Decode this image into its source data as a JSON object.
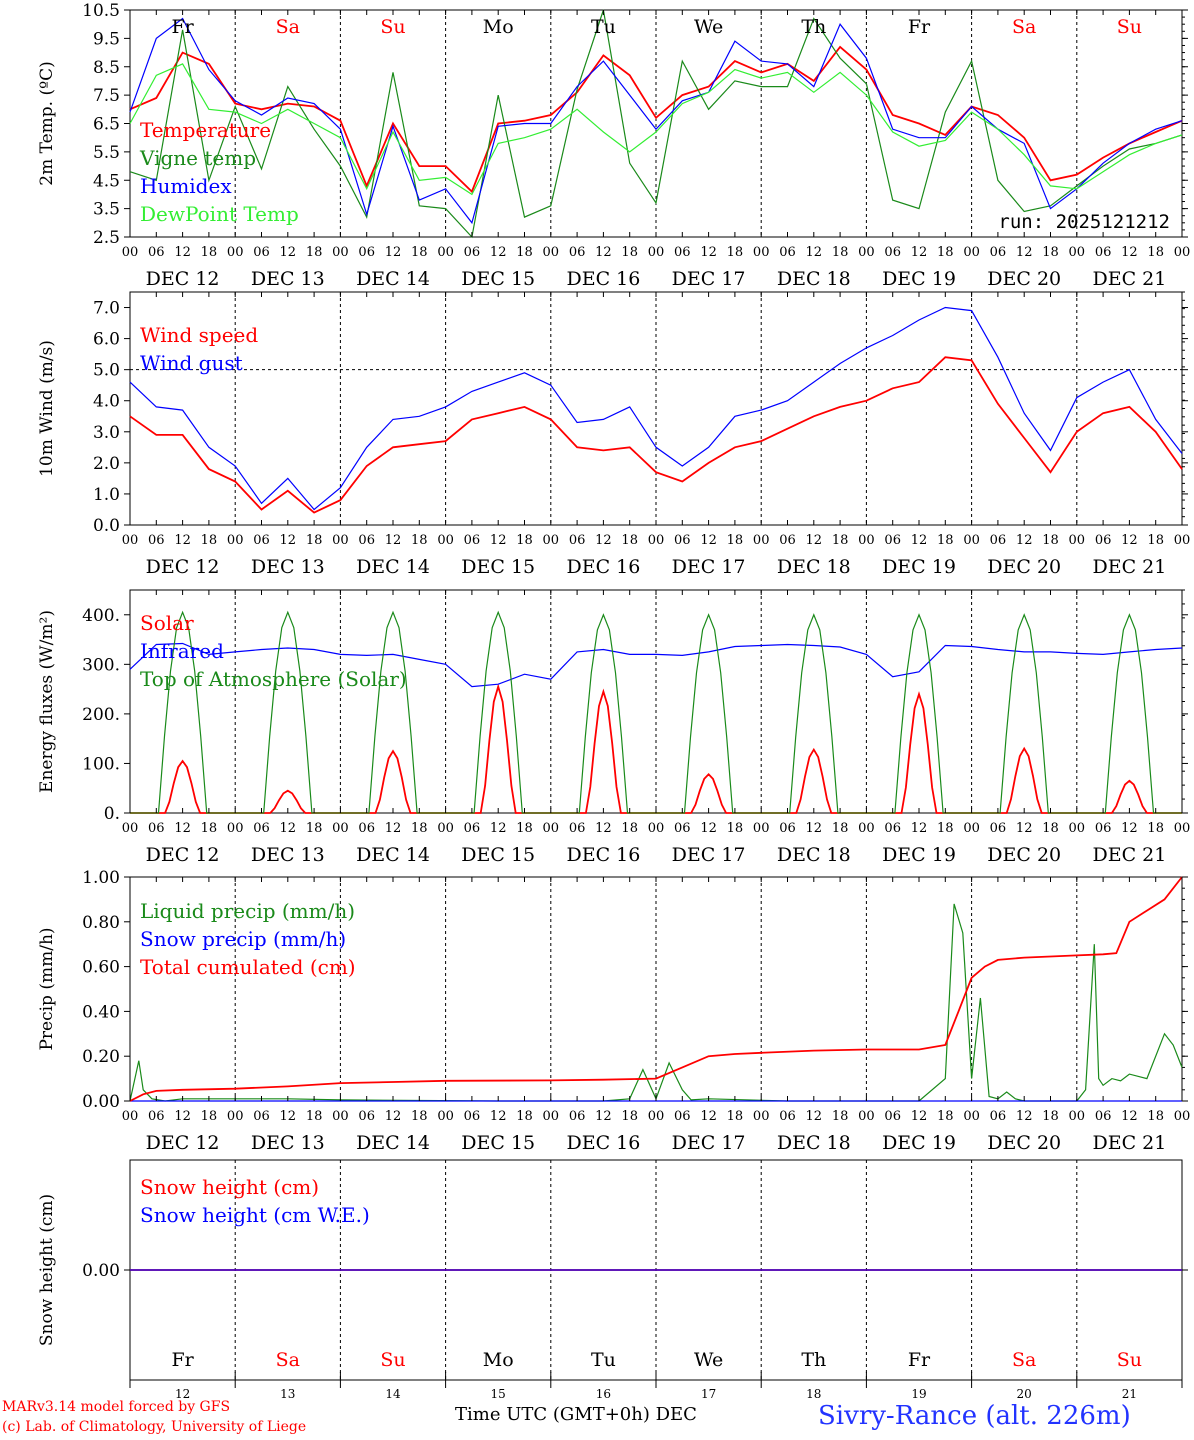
{
  "meter": {
    "run_label": "run: 2025121212",
    "location_label": "Sivry-Rance (alt. 226m)",
    "credit_model": "MARv3.14 model forced by GFS",
    "credit_lab": "(c) Lab. of Climatology, University of Liege",
    "xaxis_title": "Time UTC (GMT+0h)",
    "month_label": "DEC"
  },
  "colors": {
    "red": "#ff0000",
    "green": "#1a8a1a",
    "blue": "#0000ff",
    "lightgreen": "#33ee33",
    "black": "#000000",
    "grid": "#000000"
  },
  "chart_data": [
    {
      "type": "line",
      "ylabel": "2m Temp. (ºC)",
      "ylim": [
        2.5,
        10.5
      ],
      "yticks": [
        "2.5",
        "3.5",
        "4.5",
        "5.5",
        "6.5",
        "7.5",
        "8.5",
        "9.5",
        "10.5"
      ],
      "x_hours": [
        0,
        6,
        12,
        18,
        24,
        30,
        36,
        42,
        48,
        54,
        60,
        66,
        72,
        78,
        84,
        90,
        96,
        102,
        108,
        114,
        120,
        126,
        132,
        138,
        144,
        150,
        156,
        162,
        168,
        174,
        180,
        186,
        192,
        198,
        204,
        210,
        216,
        222,
        228,
        234,
        240
      ],
      "series": [
        {
          "name": "Temperature",
          "color": "red",
          "values": [
            7.0,
            7.4,
            9.0,
            8.6,
            7.2,
            7.0,
            7.2,
            7.1,
            6.6,
            4.3,
            6.5,
            5.0,
            5.0,
            4.1,
            6.5,
            6.6,
            6.8,
            7.6,
            8.9,
            8.2,
            6.7,
            7.5,
            7.8,
            8.7,
            8.3,
            8.6,
            8.0,
            9.2,
            8.4,
            6.8,
            6.5,
            6.1,
            7.1,
            6.8,
            6.0,
            4.5,
            4.7,
            5.3,
            5.8,
            6.2,
            6.6
          ]
        },
        {
          "name": "Vigne temp",
          "color": "green",
          "values": [
            4.8,
            4.5,
            9.8,
            4.5,
            7.1,
            4.9,
            7.8,
            6.3,
            5.0,
            3.2,
            8.3,
            3.6,
            3.5,
            2.4,
            7.5,
            3.2,
            3.6,
            7.7,
            10.5,
            5.1,
            3.7,
            8.7,
            7.0,
            8.0,
            7.8,
            7.8,
            10.2,
            8.8,
            7.9,
            3.8,
            3.5,
            6.9,
            8.7,
            4.5,
            3.4,
            3.6,
            4.3,
            5.0,
            5.6,
            5.8,
            6.1
          ]
        },
        {
          "name": "Humidex",
          "color": "blue",
          "values": [
            6.9,
            9.5,
            10.2,
            8.4,
            7.3,
            6.8,
            7.4,
            7.2,
            6.3,
            3.3,
            6.4,
            3.8,
            4.2,
            3.0,
            6.4,
            6.5,
            6.5,
            7.8,
            8.7,
            7.5,
            6.3,
            7.3,
            7.6,
            9.4,
            8.7,
            8.6,
            7.8,
            10.0,
            8.8,
            6.3,
            6.0,
            6.0,
            7.1,
            6.3,
            5.8,
            3.5,
            4.2,
            5.1,
            5.8,
            6.3,
            6.6
          ]
        },
        {
          "name": "DewPoint Temp",
          "color": "lightgreen",
          "values": [
            6.5,
            8.2,
            8.6,
            7.0,
            6.9,
            6.5,
            7.0,
            6.5,
            6.0,
            4.2,
            6.2,
            4.5,
            4.6,
            4.0,
            5.8,
            6.0,
            6.3,
            7.0,
            6.2,
            5.5,
            6.2,
            7.2,
            7.6,
            8.4,
            8.1,
            8.3,
            7.6,
            8.3,
            7.5,
            6.2,
            5.7,
            5.9,
            6.9,
            6.3,
            5.4,
            4.3,
            4.2,
            4.8,
            5.4,
            5.8,
            6.1
          ]
        }
      ],
      "day_name_labels": [
        "Fr",
        "Sa",
        "Su",
        "Mo",
        "Tu",
        "We",
        "Th",
        "Fr",
        "Sa",
        "Su"
      ],
      "day_name_colors": [
        "black",
        "red",
        "red",
        "black",
        "black",
        "black",
        "black",
        "black",
        "red",
        "red"
      ],
      "has_run_label": true
    },
    {
      "type": "line",
      "ylabel": "10m Wind (m/s)",
      "ylim": [
        0,
        7.5
      ],
      "yticks": [
        "0.0",
        "1.0",
        "2.0",
        "3.0",
        "4.0",
        "5.0",
        "6.0",
        "7.0"
      ],
      "hline": 5.0,
      "x_hours": [
        0,
        6,
        12,
        18,
        24,
        30,
        36,
        42,
        48,
        54,
        60,
        66,
        72,
        78,
        84,
        90,
        96,
        102,
        108,
        114,
        120,
        126,
        132,
        138,
        144,
        150,
        156,
        162,
        168,
        174,
        180,
        186,
        192,
        198,
        204,
        210,
        216,
        222,
        228,
        234,
        240
      ],
      "series": [
        {
          "name": "Wind speed",
          "color": "red",
          "values": [
            3.5,
            2.9,
            2.9,
            1.8,
            1.4,
            0.5,
            1.1,
            0.4,
            0.8,
            1.9,
            2.5,
            2.6,
            2.7,
            3.4,
            3.6,
            3.8,
            3.4,
            2.5,
            2.4,
            2.5,
            1.7,
            1.4,
            2.0,
            2.5,
            2.7,
            3.1,
            3.5,
            3.8,
            4.0,
            4.4,
            4.6,
            5.4,
            5.3,
            3.9,
            2.8,
            1.7,
            3.0,
            3.6,
            3.8,
            3.0,
            1.8
          ]
        },
        {
          "name": "Wind gust",
          "color": "blue",
          "values": [
            4.6,
            3.8,
            3.7,
            2.5,
            1.9,
            0.7,
            1.5,
            0.5,
            1.2,
            2.5,
            3.4,
            3.5,
            3.8,
            4.3,
            4.6,
            4.9,
            4.5,
            3.3,
            3.4,
            3.8,
            2.5,
            1.9,
            2.5,
            3.5,
            3.7,
            4.0,
            4.6,
            5.2,
            5.7,
            6.1,
            6.6,
            7.0,
            6.9,
            5.4,
            3.6,
            2.4,
            4.1,
            4.6,
            5.0,
            3.4,
            2.3
          ]
        }
      ]
    },
    {
      "type": "line",
      "ylabel": "Energy fluxes (W/m²)",
      "ylim": [
        0,
        450
      ],
      "yticks": [
        "0.",
        "100.",
        "200.",
        "300.",
        "400."
      ],
      "series": [
        {
          "name": "Solar",
          "color": "red",
          "peaks": [
            105,
            45,
            125,
            255,
            245,
            78,
            128,
            240,
            130,
            65
          ]
        },
        {
          "name": "Infrared",
          "color": "blue",
          "x_hours": [
            0,
            6,
            12,
            18,
            24,
            30,
            36,
            42,
            48,
            54,
            60,
            66,
            72,
            78,
            84,
            90,
            96,
            102,
            108,
            114,
            120,
            126,
            132,
            138,
            144,
            150,
            156,
            162,
            168,
            174,
            180,
            186,
            192,
            198,
            204,
            210,
            216,
            222,
            228,
            234,
            240
          ],
          "values": [
            290,
            340,
            342,
            320,
            325,
            330,
            333,
            330,
            320,
            318,
            320,
            310,
            300,
            255,
            260,
            280,
            270,
            325,
            330,
            320,
            320,
            318,
            325,
            336,
            338,
            340,
            338,
            335,
            320,
            275,
            285,
            338,
            336,
            330,
            325,
            325,
            322,
            320,
            325,
            330,
            333
          ]
        },
        {
          "name": "Top of Atmosphere (Solar)",
          "color": "green",
          "peaks": [
            405,
            405,
            405,
            405,
            400,
            400,
            400,
            400,
            400,
            400
          ]
        }
      ]
    },
    {
      "type": "line",
      "ylabel": "Precip (mm/h)",
      "ylim": [
        0,
        1.0
      ],
      "yticks": [
        "0.00",
        "0.20",
        "0.40",
        "0.60",
        "0.80",
        "1.00"
      ],
      "series": [
        {
          "name": "Liquid precip (mm/h)",
          "color": "green",
          "x_hours": [
            0,
            2,
            3,
            5,
            8,
            12,
            24,
            36,
            48,
            84,
            108,
            114,
            117,
            120,
            123,
            126,
            128,
            132,
            150,
            180,
            186,
            188,
            190,
            192,
            194,
            196,
            198,
            200,
            202,
            204,
            216,
            218,
            220,
            221,
            222,
            224,
            226,
            228,
            232,
            236,
            238,
            240
          ],
          "values": [
            0,
            0.18,
            0.05,
            0.01,
            0,
            0.01,
            0.01,
            0.01,
            0.005,
            0,
            0,
            0.01,
            0.14,
            0.01,
            0.17,
            0.05,
            0.005,
            0.01,
            0,
            0,
            0.1,
            0.88,
            0.75,
            0.1,
            0.46,
            0.02,
            0.01,
            0.04,
            0.01,
            0,
            0,
            0.05,
            0.7,
            0.1,
            0.07,
            0.1,
            0.09,
            0.12,
            0.1,
            0.3,
            0.25,
            0.15
          ]
        },
        {
          "name": "Snow precip (mm/h)",
          "color": "blue",
          "x_hours": [
            0,
            240
          ],
          "values": [
            0,
            0
          ]
        },
        {
          "name": "Total cumulated (cm)",
          "color": "red",
          "x_hours": [
            0,
            3,
            6,
            12,
            24,
            36,
            48,
            60,
            72,
            96,
            108,
            120,
            126,
            132,
            138,
            144,
            156,
            168,
            180,
            186,
            189,
            192,
            195,
            198,
            204,
            216,
            222,
            225,
            228,
            232,
            236,
            240
          ],
          "values": [
            0,
            0.03,
            0.045,
            0.05,
            0.055,
            0.065,
            0.08,
            0.085,
            0.09,
            0.092,
            0.095,
            0.1,
            0.15,
            0.2,
            0.21,
            0.215,
            0.225,
            0.23,
            0.23,
            0.25,
            0.4,
            0.55,
            0.6,
            0.63,
            0.64,
            0.65,
            0.655,
            0.66,
            0.8,
            0.85,
            0.9,
            1.0
          ]
        }
      ]
    },
    {
      "type": "line",
      "ylabel": "Snow height (cm)",
      "yticks": [
        "0.00"
      ],
      "series": [
        {
          "name": "Snow height (cm)",
          "color": "red",
          "x_hours": [
            0,
            240
          ],
          "values": [
            0,
            0
          ]
        },
        {
          "name": "Snow height (cm W.E.)",
          "color": "blue",
          "x_hours": [
            0,
            240
          ],
          "values": [
            0,
            0
          ]
        }
      ]
    }
  ],
  "xaxis": {
    "hour_ticks": [
      "00",
      "06",
      "12",
      "18"
    ],
    "day_labels": [
      "DEC 12",
      "DEC 13",
      "DEC 14",
      "DEC 15",
      "DEC 16",
      "DEC 17",
      "DEC 18",
      "DEC 19",
      "DEC 20",
      "DEC 21"
    ],
    "day_numbers": [
      "12",
      "13",
      "14",
      "15",
      "16",
      "17",
      "18",
      "19",
      "20",
      "21"
    ]
  }
}
